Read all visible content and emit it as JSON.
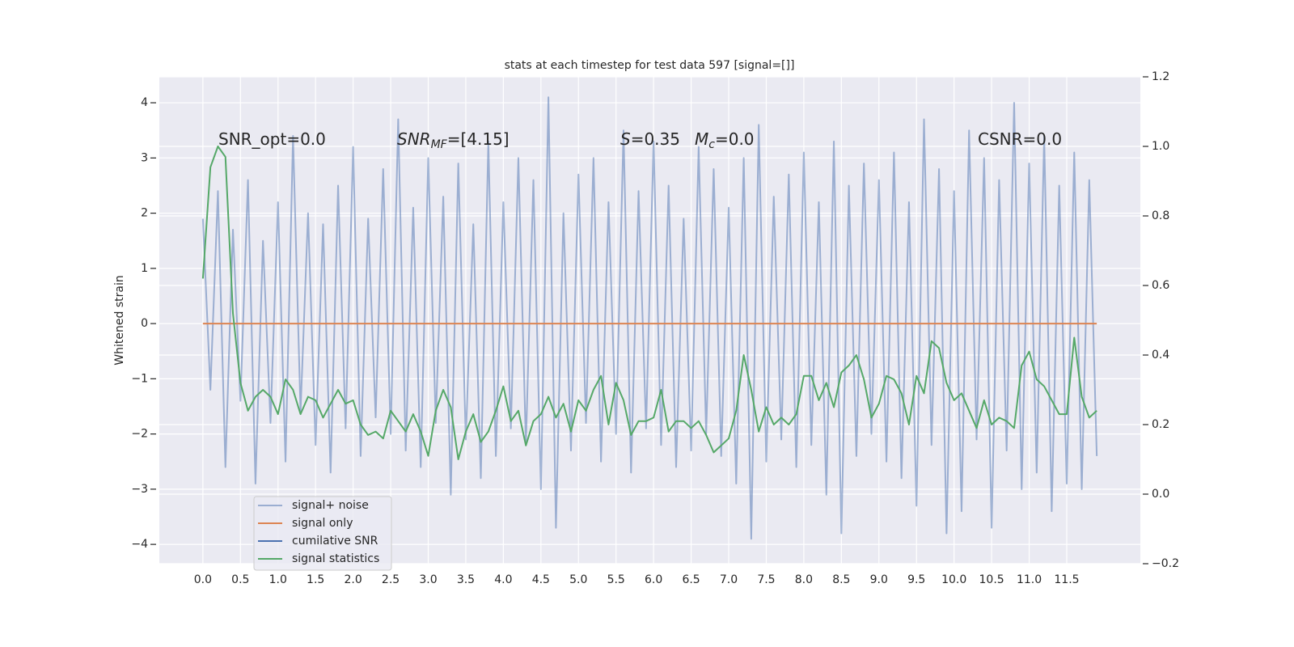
{
  "chart_data": {
    "type": "line",
    "title": "stats at each timestep for test data 597 [signal=[]]",
    "ylabel": "Whitened strain",
    "annotations": [
      {
        "text": "SNR_opt=0.0"
      },
      {
        "italic": "SNR",
        "sub": "MF",
        "text": "=[4.15]"
      },
      {
        "italic": "S",
        "text": "=0.35"
      },
      {
        "italic": "M",
        "sub": "c",
        "text": "=0.0"
      },
      {
        "text": "CSNR=0.0"
      }
    ],
    "x": [
      0.0,
      0.1,
      0.2,
      0.3,
      0.4,
      0.5,
      0.6,
      0.7,
      0.8,
      0.9,
      1.0,
      1.1,
      1.2,
      1.3,
      1.4,
      1.5,
      1.6,
      1.7,
      1.8,
      1.9,
      2.0,
      2.1,
      2.2,
      2.3,
      2.4,
      2.5,
      2.6,
      2.7,
      2.8,
      2.9,
      3.0,
      3.1,
      3.2,
      3.3,
      3.4,
      3.5,
      3.6,
      3.7,
      3.8,
      3.9,
      4.0,
      4.1,
      4.2,
      4.3,
      4.4,
      4.5,
      4.6,
      4.7,
      4.8,
      4.9,
      5.0,
      5.1,
      5.2,
      5.3,
      5.4,
      5.5,
      5.6,
      5.7,
      5.8,
      5.9,
      6.0,
      6.1,
      6.2,
      6.3,
      6.4,
      6.5,
      6.6,
      6.7,
      6.8,
      6.9,
      7.0,
      7.1,
      7.2,
      7.3,
      7.4,
      7.5,
      7.6,
      7.7,
      7.8,
      7.9,
      8.0,
      8.1,
      8.2,
      8.3,
      8.4,
      8.5,
      8.6,
      8.7,
      8.8,
      8.9,
      9.0,
      9.1,
      9.2,
      9.3,
      9.4,
      9.5,
      9.6,
      9.7,
      9.8,
      9.9,
      10.0,
      10.1,
      10.2,
      10.3,
      10.4,
      10.5,
      10.6,
      10.7,
      10.8,
      10.9,
      11.0,
      11.1,
      11.2,
      11.3,
      11.4,
      11.5,
      11.6,
      11.7,
      11.8,
      11.9
    ],
    "series": [
      {
        "name": "signal+ noise",
        "color": "#4c72b0",
        "alpha": 0.5,
        "values": [
          1.9,
          -1.2,
          2.4,
          -2.6,
          1.7,
          -1.4,
          2.6,
          -2.9,
          1.5,
          -1.8,
          2.2,
          -2.5,
          3.4,
          -1.6,
          2.0,
          -2.2,
          1.8,
          -2.7,
          2.5,
          -1.9,
          3.2,
          -2.4,
          1.9,
          -1.7,
          2.8,
          -2.0,
          3.7,
          -2.3,
          2.1,
          -2.6,
          3.0,
          -1.8,
          2.3,
          -3.1,
          2.9,
          -2.1,
          1.8,
          -2.8,
          3.3,
          -2.4,
          2.2,
          -1.9,
          3.0,
          -2.2,
          2.6,
          -3.0,
          4.1,
          -3.7,
          2.0,
          -2.3,
          2.7,
          -1.8,
          3.0,
          -2.5,
          2.2,
          -2.0,
          3.5,
          -2.7,
          2.4,
          -1.9,
          3.3,
          -2.2,
          2.5,
          -2.6,
          1.9,
          -2.3,
          3.2,
          -2.0,
          2.8,
          -2.4,
          2.1,
          -2.9,
          3.0,
          -3.9,
          3.6,
          -2.5,
          2.3,
          -2.1,
          2.7,
          -2.6,
          3.1,
          -2.2,
          2.2,
          -3.1,
          3.3,
          -3.8,
          2.5,
          -2.4,
          2.9,
          -2.0,
          2.6,
          -2.5,
          3.1,
          -2.8,
          2.2,
          -3.3,
          3.7,
          -2.2,
          2.8,
          -3.8,
          2.4,
          -3.4,
          3.5,
          -2.1,
          3.0,
          -3.7,
          2.6,
          -2.3,
          4.0,
          -3.0,
          2.9,
          -2.7,
          3.4,
          -3.4,
          2.5,
          -2.9,
          3.1,
          -3.0,
          2.6,
          -2.4
        ]
      },
      {
        "name": "signal only",
        "color": "#dd8452",
        "alpha": 1,
        "values": [
          0,
          0,
          0,
          0,
          0,
          0,
          0,
          0,
          0,
          0,
          0,
          0,
          0,
          0,
          0,
          0,
          0,
          0,
          0,
          0,
          0,
          0,
          0,
          0,
          0,
          0,
          0,
          0,
          0,
          0,
          0,
          0,
          0,
          0,
          0,
          0,
          0,
          0,
          0,
          0,
          0,
          0,
          0,
          0,
          0,
          0,
          0,
          0,
          0,
          0,
          0,
          0,
          0,
          0,
          0,
          0,
          0,
          0,
          0,
          0,
          0,
          0,
          0,
          0,
          0,
          0,
          0,
          0,
          0,
          0,
          0,
          0,
          0,
          0,
          0,
          0,
          0,
          0,
          0,
          0,
          0,
          0,
          0,
          0,
          0,
          0,
          0,
          0,
          0,
          0,
          0,
          0,
          0,
          0,
          0,
          0,
          0,
          0,
          0,
          0,
          0,
          0,
          0,
          0,
          0,
          0,
          0,
          0,
          0,
          0,
          0,
          0,
          0,
          0,
          0,
          0,
          0,
          0,
          0,
          0
        ]
      },
      {
        "name": "cumilative SNR",
        "color": "#4c72b0",
        "alpha": 1,
        "values": [
          null,
          null,
          null,
          null,
          null,
          null,
          null,
          null,
          null,
          null,
          null,
          null,
          null,
          null,
          null,
          null,
          null,
          null,
          null,
          null,
          null,
          null,
          null,
          null,
          null,
          null,
          null,
          null,
          null,
          null,
          null,
          null,
          null,
          null,
          null,
          null,
          null,
          null,
          null,
          null,
          null,
          null,
          null,
          null,
          null,
          null,
          null,
          null,
          null,
          null,
          null,
          null,
          null,
          null,
          null,
          null,
          null,
          null,
          null,
          null,
          null,
          null,
          null,
          null,
          null,
          null,
          null,
          null,
          null,
          null,
          null,
          null,
          null,
          null,
          null,
          null,
          null,
          null,
          null,
          null,
          null,
          null,
          null,
          null,
          null,
          null,
          null,
          null,
          null,
          null,
          null,
          null,
          null,
          null,
          null,
          null,
          null,
          null,
          null,
          null,
          null,
          null,
          null,
          null,
          null,
          null,
          null,
          null,
          null,
          null,
          null,
          null,
          null,
          null,
          null,
          null,
          null,
          null,
          null,
          null
        ]
      },
      {
        "name": "signal statistics",
        "color": "#55a868",
        "alpha": 1,
        "axis": "y2",
        "values": [
          0.62,
          0.94,
          1.0,
          0.97,
          0.52,
          0.32,
          0.24,
          0.28,
          0.3,
          0.28,
          0.23,
          0.33,
          0.3,
          0.23,
          0.28,
          0.27,
          0.22,
          0.26,
          0.3,
          0.26,
          0.27,
          0.2,
          0.17,
          0.18,
          0.16,
          0.24,
          0.21,
          0.18,
          0.23,
          0.18,
          0.11,
          0.24,
          0.3,
          0.25,
          0.1,
          0.18,
          0.23,
          0.15,
          0.18,
          0.24,
          0.31,
          0.21,
          0.24,
          0.14,
          0.21,
          0.23,
          0.28,
          0.22,
          0.26,
          0.18,
          0.27,
          0.24,
          0.3,
          0.34,
          0.2,
          0.32,
          0.27,
          0.17,
          0.21,
          0.21,
          0.22,
          0.3,
          0.18,
          0.21,
          0.21,
          0.19,
          0.21,
          0.17,
          0.12,
          0.14,
          0.16,
          0.24,
          0.4,
          0.3,
          0.18,
          0.25,
          0.2,
          0.22,
          0.2,
          0.23,
          0.34,
          0.34,
          0.27,
          0.32,
          0.25,
          0.35,
          0.37,
          0.4,
          0.33,
          0.22,
          0.26,
          0.34,
          0.33,
          0.29,
          0.2,
          0.34,
          0.29,
          0.44,
          0.42,
          0.32,
          0.27,
          0.29,
          0.24,
          0.19,
          0.27,
          0.2,
          0.22,
          0.21,
          0.19,
          0.37,
          0.41,
          0.33,
          0.31,
          0.27,
          0.23,
          0.23,
          0.45,
          0.28,
          0.22,
          0.24
        ]
      }
    ],
    "xlim": [
      -0.58,
      12.48
    ],
    "xticks": [
      {
        "value": 0,
        "label": "0.0"
      },
      {
        "value": 0.5,
        "label": "0.5"
      },
      {
        "value": 1,
        "label": "1.0"
      },
      {
        "value": 1.5,
        "label": "1.5"
      },
      {
        "value": 2,
        "label": "2.0"
      },
      {
        "value": 2.5,
        "label": "2.5"
      },
      {
        "value": 3,
        "label": "3.0"
      },
      {
        "value": 3.5,
        "label": "3.5"
      },
      {
        "value": 4,
        "label": "4.0"
      },
      {
        "value": 4.5,
        "label": "4.5"
      },
      {
        "value": 5,
        "label": "5.0"
      },
      {
        "value": 5.5,
        "label": "5.5"
      },
      {
        "value": 6,
        "label": "6.0"
      },
      {
        "value": 6.5,
        "label": "6.5"
      },
      {
        "value": 7,
        "label": "7.0"
      },
      {
        "value": 7.5,
        "label": "7.5"
      },
      {
        "value": 8,
        "label": "8.0"
      },
      {
        "value": 8.5,
        "label": "8.5"
      },
      {
        "value": 9,
        "label": "9.0"
      },
      {
        "value": 9.5,
        "label": "9.5"
      },
      {
        "value": 10,
        "label": "10.0"
      },
      {
        "value": 10.5,
        "label": "10.5"
      },
      {
        "value": 11,
        "label": "11.0"
      },
      {
        "value": 11.5,
        "label": "11.5"
      }
    ],
    "ylim": [
      -4.35,
      4.47
    ],
    "yticks": [
      {
        "value": -4,
        "label": "−4"
      },
      {
        "value": -3,
        "label": "−3"
      },
      {
        "value": -2,
        "label": "−2"
      },
      {
        "value": -1,
        "label": "−1"
      },
      0,
      1,
      2,
      3,
      4
    ],
    "y2lim": [
      -0.2,
      1.2
    ],
    "y2ticks": [
      {
        "value": -0.2,
        "label": "−0.2"
      },
      {
        "value": 0,
        "label": "0.0"
      },
      {
        "value": 0.2,
        "label": "0.2"
      },
      {
        "value": 0.4,
        "label": "0.4"
      },
      {
        "value": 0.6,
        "label": "0.6"
      },
      {
        "value": 0.8,
        "label": "0.8"
      },
      {
        "value": 1,
        "label": "1.0"
      },
      {
        "value": 1.2,
        "label": "1.2"
      }
    ],
    "grid": true,
    "legend": "lower left"
  }
}
